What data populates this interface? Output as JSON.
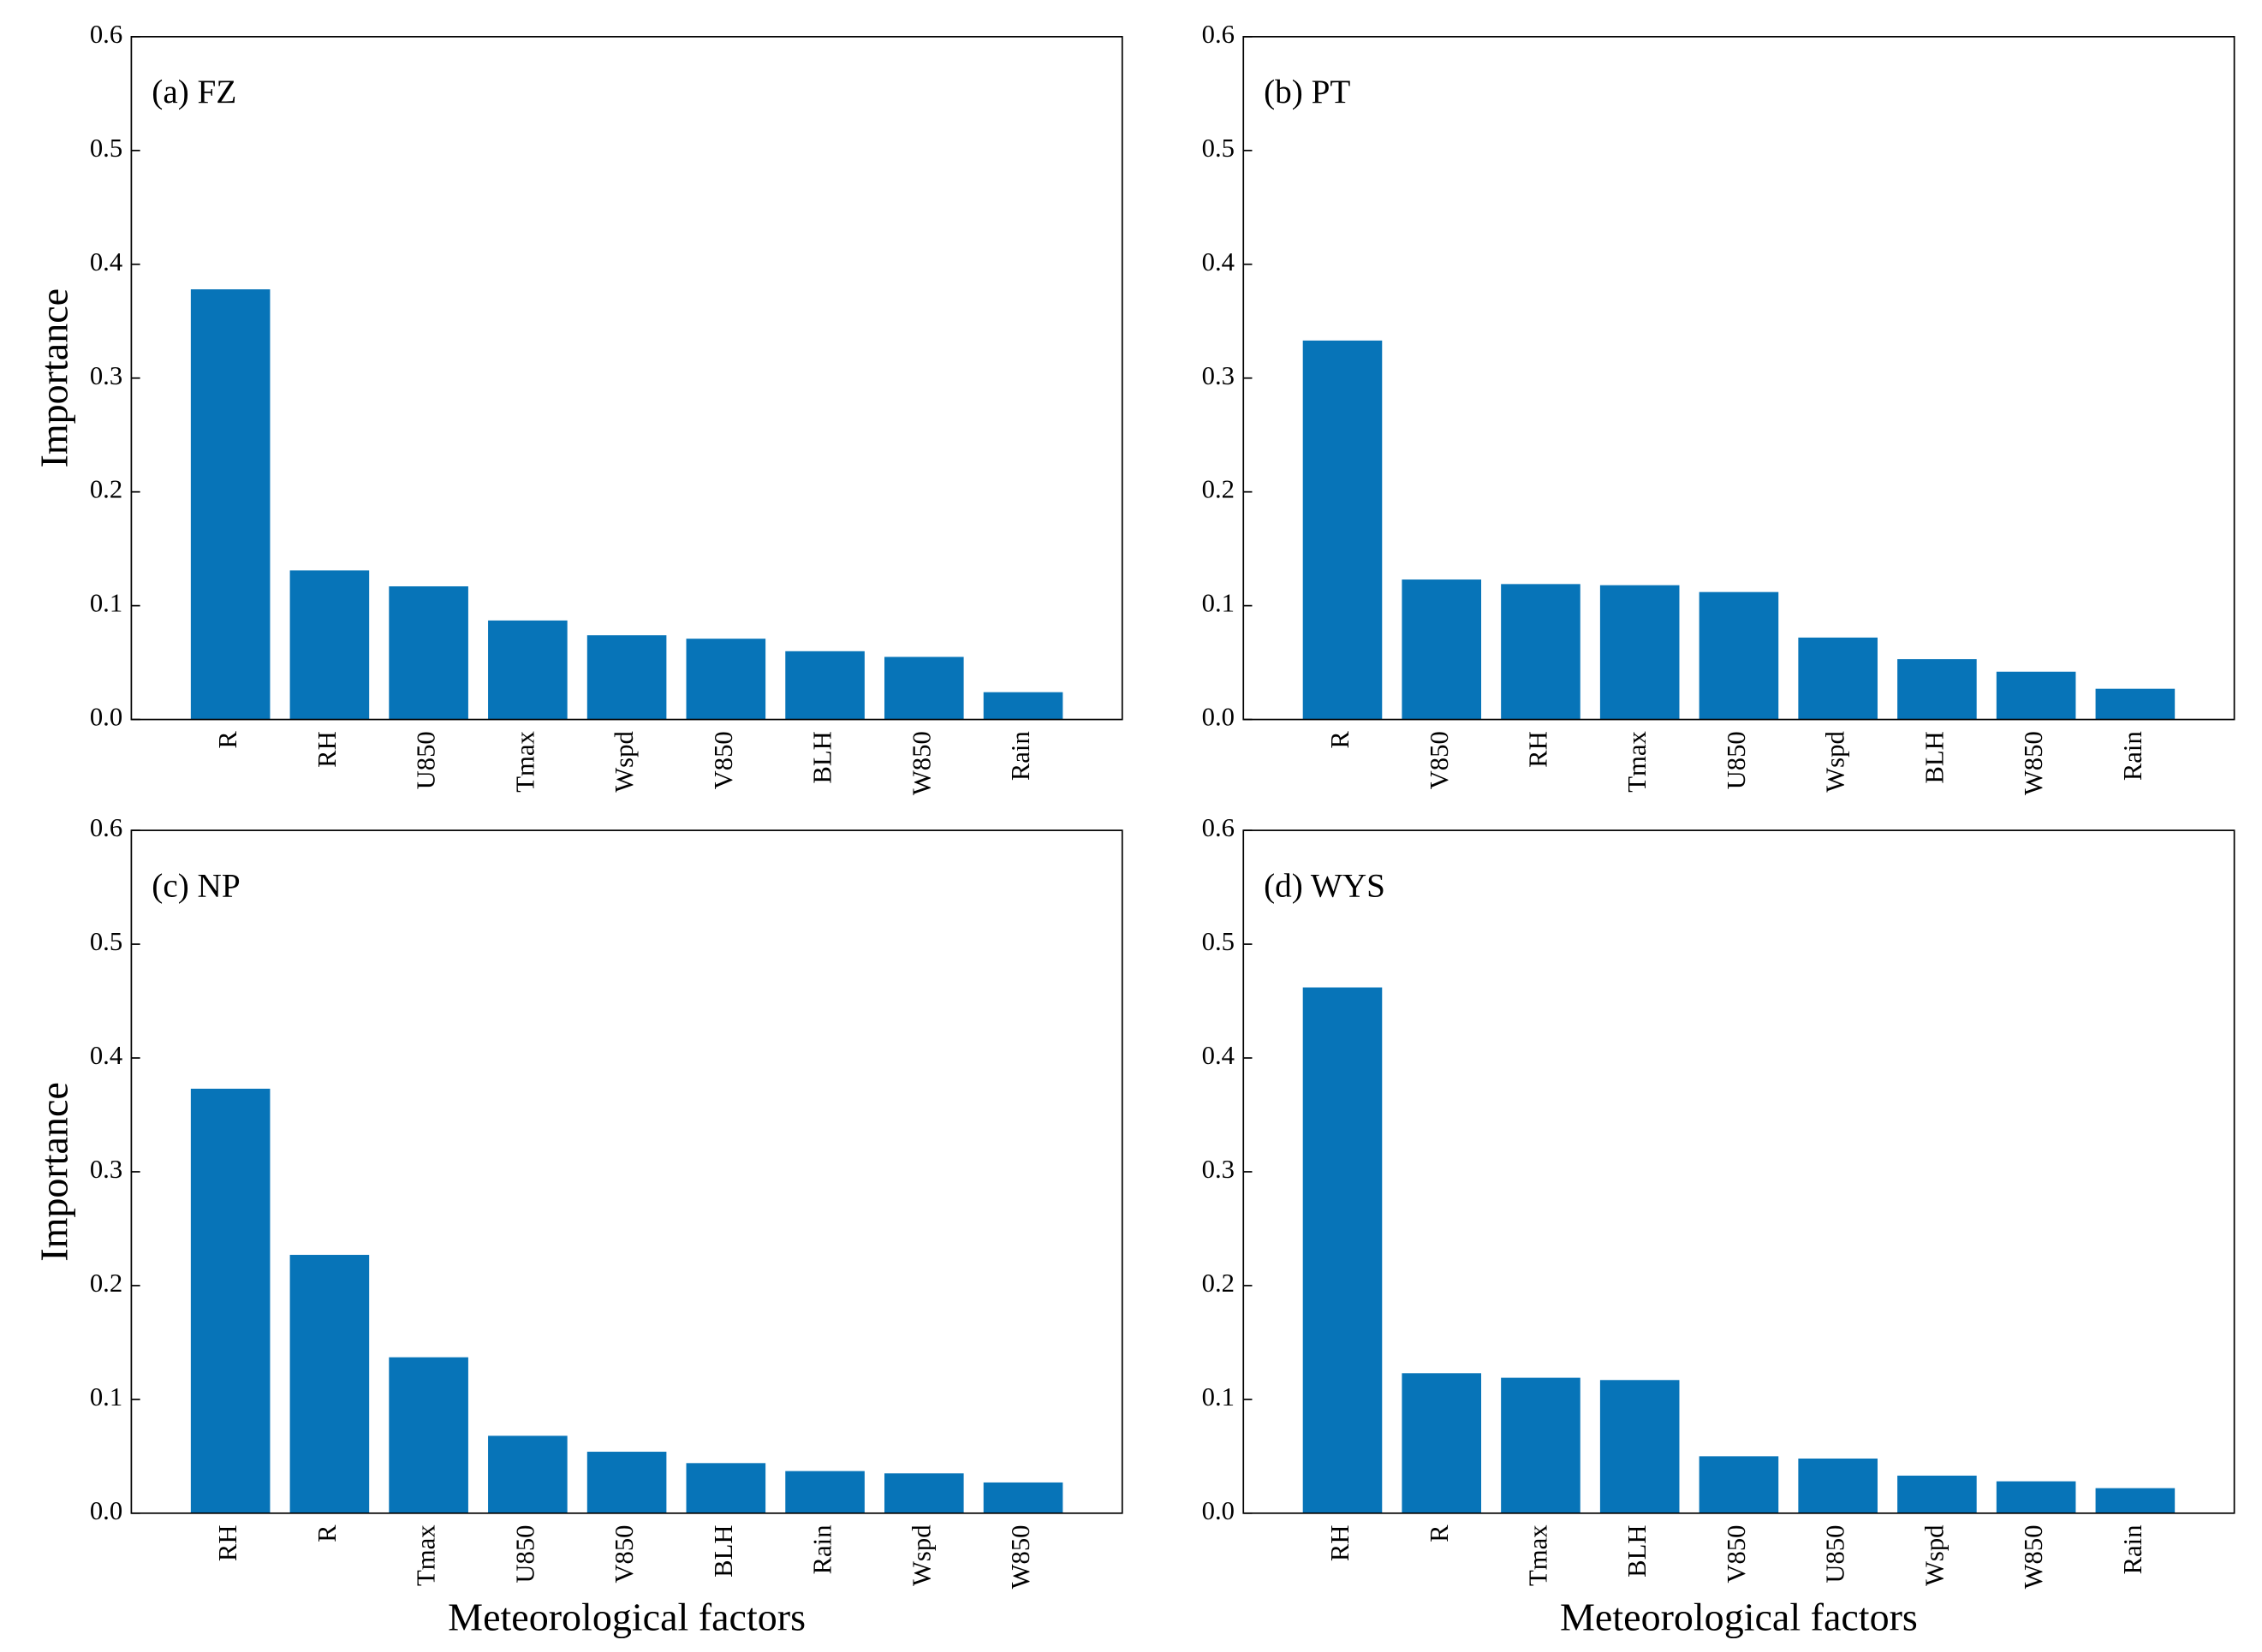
{
  "chart_data": [
    {
      "type": "bar",
      "title": "(a) FZ",
      "ylabel": "Importance",
      "categories": [
        "R",
        "RH",
        "U850",
        "Tmax",
        "Wspd",
        "V850",
        "BLH",
        "W850",
        "Rain"
      ],
      "values": [
        0.378,
        0.131,
        0.117,
        0.087,
        0.074,
        0.071,
        0.06,
        0.055,
        0.024
      ],
      "color": "#0774b8",
      "ylim": [
        0,
        0.6
      ],
      "yticks": [
        {
          "value": 0,
          "label": "0.0"
        },
        0.1,
        0.2,
        0.3,
        0.4,
        0.5,
        0.6
      ]
    },
    {
      "type": "bar",
      "title": "(b) PT",
      "categories": [
        "R",
        "V850",
        "RH",
        "Tmax",
        "U850",
        "Wspd",
        "BLH",
        "W850",
        "Rain"
      ],
      "values": [
        0.333,
        0.123,
        0.119,
        0.118,
        0.112,
        0.072,
        0.053,
        0.042,
        0.027
      ],
      "color": "#0774b8",
      "ylim": [
        0,
        0.6
      ],
      "yticks": [
        {
          "value": 0,
          "label": "0.0"
        },
        0.1,
        0.2,
        0.3,
        0.4,
        0.5,
        0.6
      ]
    },
    {
      "type": "bar",
      "title": "(c) NP",
      "ylabel": "Importance",
      "xlabel": "Meteorological factors",
      "categories": [
        "RH",
        "R",
        "Tmax",
        "U850",
        "V850",
        "BLH",
        "Rain",
        "Wspd",
        "W850"
      ],
      "values": [
        0.373,
        0.227,
        0.137,
        0.068,
        0.054,
        0.044,
        0.037,
        0.035,
        0.027
      ],
      "color": "#0774b8",
      "ylim": [
        0,
        0.6
      ],
      "yticks": [
        {
          "value": 0,
          "label": "0.0"
        },
        0.1,
        0.2,
        0.3,
        0.4,
        0.5,
        0.6
      ]
    },
    {
      "type": "bar",
      "title": "(d) WYS",
      "xlabel": "Meteorological factors",
      "categories": [
        "RH",
        "R",
        "Tmax",
        "BLH",
        "V850",
        "U850",
        "Wspd",
        "W850",
        "Rain"
      ],
      "values": [
        0.462,
        0.123,
        0.119,
        0.117,
        0.05,
        0.048,
        0.033,
        0.028,
        0.022
      ],
      "color": "#0774b8",
      "ylim": [
        0,
        0.6
      ],
      "yticks": [
        {
          "value": 0,
          "label": "0.0"
        },
        0.1,
        0.2,
        0.3,
        0.4,
        0.5,
        0.6
      ]
    }
  ]
}
